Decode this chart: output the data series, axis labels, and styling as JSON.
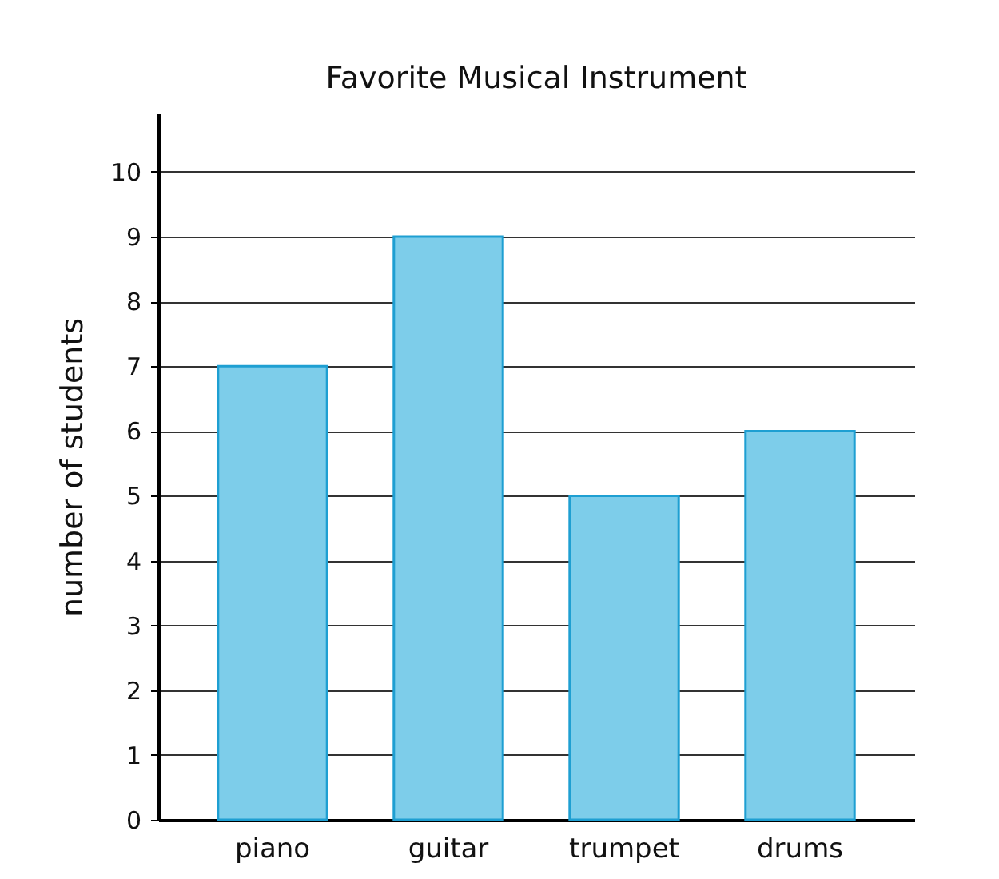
{
  "chart_data": {
    "type": "bar",
    "title": "Favorite Musical Instrument",
    "ylabel": "number of students",
    "categories": [
      "piano",
      "guitar",
      "trumpet",
      "drums"
    ],
    "values": [
      7,
      9,
      5,
      6
    ],
    "color": "#7dcdea",
    "ylim": [
      0,
      10.9
    ],
    "yticks": [
      0,
      1,
      2,
      3,
      4,
      5,
      6,
      7,
      8,
      9,
      10
    ],
    "grid": "y"
  }
}
